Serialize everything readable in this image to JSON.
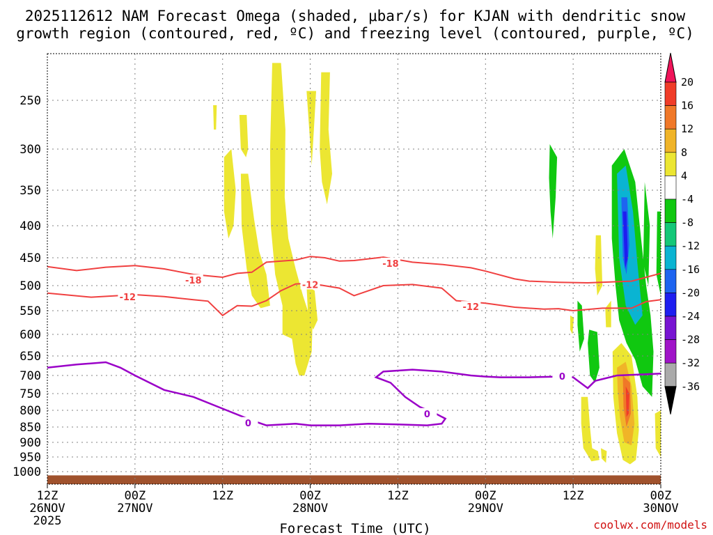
{
  "colors": {
    "background": "#ffffff",
    "grid": "#808080",
    "dgz_contour": "#f04040",
    "freezing_contour": "#9a00c8",
    "ground": "#a0522d",
    "credit": "#d01010"
  },
  "chart_data": {
    "type": "contour",
    "title_line1": "2025112612 NAM Forecast Omega (shaded, μbar/s) for KJAN with dendritic snow",
    "title_line2": "growth region (contoured, red, ºC) and freezing level (contoured, purple, ºC)",
    "xlabel": "Forecast Time (UTC)",
    "credit": "coolwx.com/models",
    "x_range_hours": [
      0,
      84
    ],
    "y_range_mb": [
      200,
      1020
    ],
    "x_ticks": [
      {
        "hour": 0,
        "l1": "12Z",
        "l2": "26NOV",
        "l3": "2025"
      },
      {
        "hour": 12,
        "l1": "00Z",
        "l2": "27NOV",
        "l3": ""
      },
      {
        "hour": 24,
        "l1": "12Z",
        "l2": "",
        "l3": ""
      },
      {
        "hour": 36,
        "l1": "00Z",
        "l2": "28NOV",
        "l3": ""
      },
      {
        "hour": 48,
        "l1": "12Z",
        "l2": "",
        "l3": ""
      },
      {
        "hour": 60,
        "l1": "00Z",
        "l2": "29NOV",
        "l3": ""
      },
      {
        "hour": 72,
        "l1": "12Z",
        "l2": "",
        "l3": ""
      },
      {
        "hour": 84,
        "l1": "00Z",
        "l2": "30NOV",
        "l3": ""
      }
    ],
    "y_ticks": [
      250,
      300,
      350,
      400,
      450,
      500,
      550,
      600,
      650,
      700,
      750,
      800,
      850,
      900,
      950,
      1000
    ],
    "colorbar": {
      "labels": [
        "20",
        "16",
        "12",
        "8",
        "4",
        "-4",
        "-8",
        "-12",
        "-16",
        "-20",
        "-24",
        "-28",
        "-32",
        "-36"
      ],
      "colors": [
        "#f0145a",
        "#f03c28",
        "#f07828",
        "#f0b428",
        "#ece632",
        "#ffffff",
        "#10c810",
        "#14c878",
        "#0ab4d2",
        "#1e64f0",
        "#1e1ef0",
        "#7814d2",
        "#a014c8",
        "#aaaaaa",
        "#000000"
      ]
    },
    "contour_labels": {
      "m18": "-18",
      "m12": "-12",
      "zero": "0"
    },
    "contours": {
      "minus18": [
        [
          0,
          466
        ],
        [
          4,
          473
        ],
        [
          8,
          467
        ],
        [
          12,
          464
        ],
        [
          16,
          470
        ],
        [
          20,
          480
        ],
        [
          24,
          485
        ],
        [
          26,
          478
        ],
        [
          28,
          476
        ],
        [
          30,
          458
        ],
        [
          34,
          454
        ],
        [
          36,
          448
        ],
        [
          38,
          450
        ],
        [
          40,
          456
        ],
        [
          42,
          455
        ],
        [
          46,
          449
        ],
        [
          50,
          458
        ],
        [
          54,
          462
        ],
        [
          58,
          468
        ],
        [
          60,
          474
        ],
        [
          64,
          488
        ],
        [
          66,
          492
        ],
        [
          70,
          494
        ],
        [
          74,
          495
        ],
        [
          78,
          493
        ],
        [
          80,
          492
        ],
        [
          82,
          485
        ],
        [
          84,
          478
        ]
      ],
      "minus12": [
        [
          0,
          515
        ],
        [
          6,
          523
        ],
        [
          12,
          518
        ],
        [
          16,
          522
        ],
        [
          20,
          528
        ],
        [
          22,
          531
        ],
        [
          24,
          560
        ],
        [
          26,
          540
        ],
        [
          28,
          541
        ],
        [
          30,
          530
        ],
        [
          32,
          510
        ],
        [
          34,
          497
        ],
        [
          36,
          496
        ],
        [
          40,
          505
        ],
        [
          42,
          520
        ],
        [
          46,
          500
        ],
        [
          50,
          498
        ],
        [
          54,
          505
        ],
        [
          56,
          530
        ],
        [
          60,
          535
        ],
        [
          64,
          543
        ],
        [
          68,
          547
        ],
        [
          70,
          546
        ],
        [
          72,
          550
        ],
        [
          76,
          545
        ],
        [
          80,
          545
        ],
        [
          82,
          532
        ],
        [
          84,
          528
        ]
      ],
      "freezing": [
        [
          0,
          680
        ],
        [
          4,
          672
        ],
        [
          8,
          666
        ],
        [
          10,
          680
        ],
        [
          12,
          700
        ],
        [
          16,
          740
        ],
        [
          20,
          760
        ],
        [
          24,
          795
        ],
        [
          28,
          830
        ],
        [
          30,
          845
        ],
        [
          34,
          840
        ],
        [
          36,
          845
        ],
        [
          40,
          845
        ],
        [
          44,
          840
        ],
        [
          48,
          842
        ],
        [
          52,
          845
        ],
        [
          54,
          840
        ],
        [
          54.5,
          825
        ],
        [
          53,
          808
        ],
        [
          51,
          790
        ],
        [
          49,
          760
        ],
        [
          47,
          720
        ],
        [
          45,
          705
        ],
        [
          46,
          690
        ],
        [
          50,
          685
        ],
        [
          54,
          690
        ],
        [
          58,
          700
        ],
        [
          60,
          703
        ],
        [
          62,
          705
        ],
        [
          66,
          705
        ],
        [
          70,
          703
        ],
        [
          72,
          705
        ],
        [
          74,
          735
        ],
        [
          75,
          715
        ],
        [
          78,
          700
        ],
        [
          82,
          697
        ],
        [
          84,
          695
        ]
      ]
    },
    "omega_blobs": [
      {
        "v": 6,
        "pts": [
          [
            22.7,
            255
          ],
          [
            23.2,
            255
          ],
          [
            23.1,
            280
          ],
          [
            22.8,
            280
          ]
        ]
      },
      {
        "v": 6,
        "pts": [
          [
            24.2,
            310
          ],
          [
            25.2,
            300
          ],
          [
            25.8,
            350
          ],
          [
            25.5,
            400
          ],
          [
            24.8,
            420
          ],
          [
            24.2,
            380
          ]
        ]
      },
      {
        "v": 6,
        "pts": [
          [
            26.3,
            265
          ],
          [
            27.3,
            265
          ],
          [
            27.5,
            300
          ],
          [
            27.2,
            310
          ],
          [
            26.5,
            300
          ]
        ]
      },
      {
        "v": 6,
        "pts": [
          [
            26.5,
            330
          ],
          [
            27.5,
            330
          ],
          [
            28.3,
            390
          ],
          [
            29.0,
            440
          ],
          [
            30.0,
            480
          ],
          [
            30.5,
            540
          ],
          [
            29.2,
            545
          ],
          [
            28.0,
            520
          ],
          [
            27.3,
            470
          ],
          [
            26.6,
            400
          ]
        ]
      },
      {
        "v": 6,
        "pts": [
          [
            30.8,
            210
          ],
          [
            32.0,
            210
          ],
          [
            32.6,
            280
          ],
          [
            32.5,
            360
          ],
          [
            33.0,
            420
          ],
          [
            34.0,
            470
          ],
          [
            35.0,
            520
          ],
          [
            36.3,
            580
          ],
          [
            36.2,
            640
          ],
          [
            35.2,
            700
          ],
          [
            34.5,
            700
          ],
          [
            34.0,
            670
          ],
          [
            33.5,
            610
          ],
          [
            32.2,
            600
          ],
          [
            32.2,
            540
          ],
          [
            31.2,
            480
          ],
          [
            30.6,
            400
          ],
          [
            30.5,
            300
          ]
        ]
      },
      {
        "v": 6,
        "pts": [
          [
            35.5,
            240
          ],
          [
            36.8,
            240
          ],
          [
            36.5,
            280
          ],
          [
            36.2,
            320
          ]
        ]
      },
      {
        "v": 6,
        "pts": [
          [
            37.6,
            340
          ],
          [
            38.3,
            370
          ],
          [
            39.0,
            330
          ],
          [
            38.5,
            280
          ],
          [
            38.7,
            220
          ],
          [
            37.5,
            220
          ],
          [
            37.3,
            300
          ]
        ]
      },
      {
        "v": 6,
        "pts": [
          [
            35.5,
            500
          ],
          [
            36.6,
            510
          ],
          [
            37.0,
            570
          ],
          [
            36.4,
            590
          ],
          [
            35.7,
            560
          ]
        ]
      },
      {
        "v": -6,
        "pts": [
          [
            68.8,
            295
          ],
          [
            69.8,
            310
          ],
          [
            69.6,
            360
          ],
          [
            69.2,
            420
          ],
          [
            68.9,
            380
          ],
          [
            68.7,
            335
          ]
        ]
      },
      {
        "v": -6,
        "pts": [
          [
            72.6,
            530
          ],
          [
            73.2,
            540
          ],
          [
            73.5,
            610
          ],
          [
            72.9,
            640
          ],
          [
            72.6,
            580
          ]
        ]
      },
      {
        "v": 6,
        "pts": [
          [
            71.6,
            560
          ],
          [
            72.1,
            565
          ],
          [
            71.9,
            600
          ],
          [
            71.6,
            590
          ]
        ]
      },
      {
        "v": -6,
        "pts": [
          [
            74.2,
            590
          ],
          [
            75.3,
            595
          ],
          [
            75.6,
            680
          ],
          [
            75.0,
            720
          ],
          [
            74.3,
            700
          ],
          [
            74.0,
            620
          ]
        ]
      },
      {
        "v": 6,
        "pts": [
          [
            75.1,
            415
          ],
          [
            75.8,
            415
          ],
          [
            76.0,
            500
          ],
          [
            75.3,
            520
          ],
          [
            75.0,
            470
          ]
        ]
      },
      {
        "v": 6,
        "pts": [
          [
            76.4,
            545
          ],
          [
            77.2,
            530
          ],
          [
            77.2,
            585
          ],
          [
            76.5,
            585
          ]
        ]
      },
      {
        "v": -6,
        "pts": [
          [
            77.3,
            320
          ],
          [
            79.0,
            300
          ],
          [
            80.5,
            340
          ],
          [
            81.3,
            420
          ],
          [
            82.0,
            500
          ],
          [
            82.6,
            560
          ],
          [
            83.0,
            640
          ],
          [
            82.8,
            760
          ],
          [
            81.5,
            730
          ],
          [
            80.5,
            660
          ],
          [
            79.3,
            620
          ],
          [
            78.3,
            570
          ],
          [
            77.8,
            500
          ],
          [
            77.3,
            420
          ]
        ]
      },
      {
        "v": -6,
        "pts": [
          [
            81.8,
            340
          ],
          [
            82.5,
            400
          ],
          [
            82.3,
            500
          ],
          [
            81.6,
            460
          ]
        ]
      },
      {
        "v": -6,
        "pts": [
          [
            83.5,
            380
          ],
          [
            84.0,
            380
          ],
          [
            84.0,
            520
          ],
          [
            83.4,
            480
          ]
        ]
      },
      {
        "v": -14,
        "pts": [
          [
            78.0,
            330
          ],
          [
            79.2,
            320
          ],
          [
            80.2,
            380
          ],
          [
            80.8,
            460
          ],
          [
            81.5,
            560
          ],
          [
            80.5,
            580
          ],
          [
            79.2,
            540
          ],
          [
            78.3,
            450
          ]
        ]
      },
      {
        "v": -18,
        "pts": [
          [
            78.6,
            360
          ],
          [
            79.4,
            360
          ],
          [
            79.7,
            430
          ],
          [
            79.3,
            480
          ],
          [
            78.8,
            450
          ]
        ]
      },
      {
        "v": -22,
        "pts": [
          [
            78.8,
            380
          ],
          [
            79.3,
            380
          ],
          [
            79.5,
            450
          ],
          [
            79.1,
            470
          ]
        ]
      },
      {
        "v": 6,
        "pts": [
          [
            73.1,
            760
          ],
          [
            74.0,
            760
          ],
          [
            74.3,
            850
          ],
          [
            74.6,
            920
          ],
          [
            75.4,
            930
          ],
          [
            75.6,
            960
          ],
          [
            74.5,
            965
          ],
          [
            73.4,
            920
          ],
          [
            73.1,
            840
          ]
        ]
      },
      {
        "v": 6,
        "pts": [
          [
            75.8,
            920
          ],
          [
            76.6,
            930
          ],
          [
            76.5,
            970
          ],
          [
            75.9,
            955
          ]
        ]
      },
      {
        "v": 6,
        "pts": [
          [
            77.4,
            640
          ],
          [
            78.6,
            620
          ],
          [
            80.0,
            650
          ],
          [
            80.8,
            760
          ],
          [
            81.0,
            860
          ],
          [
            80.6,
            960
          ],
          [
            79.8,
            975
          ],
          [
            78.8,
            960
          ],
          [
            78.0,
            870
          ],
          [
            77.5,
            760
          ]
        ]
      },
      {
        "v": 10,
        "pts": [
          [
            78.0,
            680
          ],
          [
            79.2,
            665
          ],
          [
            80.0,
            730
          ],
          [
            80.4,
            840
          ],
          [
            80.0,
            910
          ],
          [
            79.0,
            900
          ],
          [
            78.4,
            820
          ],
          [
            78.1,
            740
          ]
        ]
      },
      {
        "v": 14,
        "pts": [
          [
            78.8,
            700
          ],
          [
            79.8,
            720
          ],
          [
            79.9,
            810
          ],
          [
            79.3,
            850
          ],
          [
            78.9,
            790
          ]
        ]
      },
      {
        "v": 18,
        "pts": [
          [
            79.2,
            730
          ],
          [
            79.7,
            750
          ],
          [
            79.6,
            810
          ],
          [
            79.3,
            820
          ]
        ]
      },
      {
        "v": 6,
        "pts": [
          [
            83.2,
            810
          ],
          [
            84.0,
            800
          ],
          [
            84.0,
            950
          ],
          [
            83.3,
            920
          ]
        ]
      }
    ],
    "ground_mb": 1006,
    "ground_bottom_mb": 1020
  }
}
